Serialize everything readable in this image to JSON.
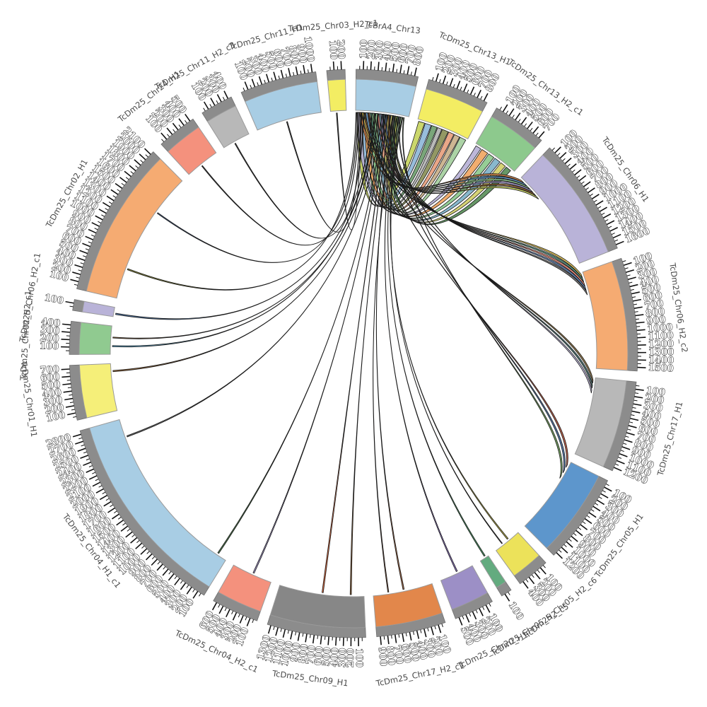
{
  "chart_data": {
    "type": "circos-synteny",
    "title": "",
    "tick_interval": 100,
    "layout": {
      "start_deg": 0.5,
      "gap_deg": 2.2,
      "band_outer_r": 402,
      "band_gray_r": 388,
      "band_inner_r": 344,
      "ribbon_r": 341,
      "tick_len": 12,
      "tick_label_r": 417,
      "name_label_r": 464,
      "tick_band_color": "#8c8c8c",
      "outline_color": "#1a1a1a"
    },
    "segments": [
      {
        "name": "TcBrA4_Chr13",
        "max_tick": 800,
        "color": "#a8cde4"
      },
      {
        "name": "TcDm25_Chr13_H1",
        "max_tick": 800,
        "color": "#f3ed63"
      },
      {
        "name": "TcDm25_Chr13_H2_c1",
        "max_tick": 700,
        "color": "#8dc98d"
      },
      {
        "name": "TcDm25_Chr06_H1",
        "max_tick": 1600,
        "color": "#b9b3d8"
      },
      {
        "name": "TcDm25_Chr06_H2_c2",
        "max_tick": 1500,
        "color": "#f5ab72"
      },
      {
        "name": "TcDm25_Chr17_H1",
        "max_tick": 1200,
        "color": "#b8b8b8"
      },
      {
        "name": "TcDm25_Chr05_H1",
        "max_tick": 1200,
        "color": "#5d96cc"
      },
      {
        "name": "TcDm25_Chr05_H2_c6",
        "max_tick": 400,
        "color": "#ece25a"
      },
      {
        "name": "TcDm25_Chr05_H2_c5",
        "max_tick": 100,
        "color": "#63ab7f"
      },
      {
        "name": "TcDm25_Chr20_H1",
        "max_tick": 500,
        "color": "#9c8fc6"
      },
      {
        "name": "TcDm25_Chr17_H2_c1",
        "max_tick": 900,
        "color": "#e2874b"
      },
      {
        "name": "TcDm25_Chr09_H1",
        "max_tick": 1300,
        "color": "#878787"
      },
      {
        "name": "TcDm25_Chr04_H2_c1",
        "max_tick": 600,
        "color": "#f4917d"
      },
      {
        "name": "TcDm25_Chr04_H1_c1",
        "max_tick": 2800,
        "color": "#a8cde4"
      },
      {
        "name": "TcDm25_Chr01_H1",
        "max_tick": 700,
        "color": "#f5ef79"
      },
      {
        "name": "TcDm25_Chr02_H2_c1",
        "max_tick": 400,
        "color": "#90ca90"
      },
      {
        "name": "TcDm25_Chr06_H2_c1",
        "max_tick": 100,
        "color": "#b9b3d8"
      },
      {
        "name": "TcDm25_Chr02_H1",
        "max_tick": 2100,
        "color": "#f5ab72"
      },
      {
        "name": "TcDm25_Chr24_H1",
        "max_tick": 500,
        "color": "#f4917d"
      },
      {
        "name": "TcDm25_Chr11_H2_c3",
        "max_tick": 400,
        "color": "#b8b8b8"
      },
      {
        "name": "TcDm25_Chr11_H1",
        "max_tick": 1000,
        "color": "#a8cde4"
      },
      {
        "name": "TcDm25_Chr03_H2_c1",
        "max_tick": 200,
        "color": "#f3ed63"
      }
    ],
    "links": {
      "source_index": 0,
      "entry_format": [
        "src_start",
        "src_end",
        "target_index",
        "tgt_start",
        "tgt_end",
        "color"
      ],
      "entries": [
        [
          20,
          120,
          1,
          20,
          120,
          "#c7d45f"
        ],
        [
          120,
          200,
          1,
          130,
          230,
          "#8fb7d8"
        ],
        [
          210,
          290,
          1,
          240,
          330,
          "#6f9e6f"
        ],
        [
          300,
          360,
          1,
          340,
          410,
          "#b3b3b3"
        ],
        [
          370,
          450,
          1,
          420,
          520,
          "#8a8f57"
        ],
        [
          460,
          540,
          1,
          530,
          620,
          "#e8a07e"
        ],
        [
          550,
          640,
          1,
          630,
          720,
          "#c9b08a"
        ],
        [
          650,
          760,
          1,
          730,
          830,
          "#a5cf9e"
        ],
        [
          30,
          110,
          2,
          20,
          110,
          "#b7b1d6"
        ],
        [
          150,
          240,
          2,
          130,
          240,
          "#f0a663"
        ],
        [
          260,
          350,
          2,
          260,
          360,
          "#8dc98d"
        ],
        [
          380,
          470,
          2,
          380,
          480,
          "#7fb2c9"
        ],
        [
          500,
          590,
          2,
          500,
          590,
          "#d3cf6a"
        ],
        [
          610,
          700,
          2,
          610,
          700,
          "#5a8f5a"
        ],
        [
          60,
          90,
          3,
          30,
          90,
          "#e08849"
        ],
        [
          160,
          190,
          3,
          100,
          160,
          "#5e97cc"
        ],
        [
          280,
          310,
          3,
          170,
          230,
          "#8dc98d"
        ],
        [
          400,
          430,
          3,
          240,
          300,
          "#9b8ec4"
        ],
        [
          520,
          550,
          3,
          310,
          370,
          "#8b5a2b"
        ],
        [
          640,
          670,
          3,
          380,
          440,
          "#c9d45c"
        ],
        [
          100,
          125,
          4,
          30,
          90,
          "#e0c04d"
        ],
        [
          230,
          255,
          4,
          100,
          160,
          "#4e8f7a"
        ],
        [
          350,
          375,
          4,
          170,
          230,
          "#f08876"
        ],
        [
          470,
          495,
          4,
          240,
          300,
          "#5b7fb5"
        ],
        [
          590,
          615,
          4,
          310,
          370,
          "#6b6b6b"
        ],
        [
          140,
          155,
          5,
          40,
          90,
          "#8b6f3e"
        ],
        [
          430,
          445,
          5,
          120,
          170,
          "#3e6b6b"
        ],
        [
          700,
          715,
          5,
          200,
          250,
          "#b7b1d6"
        ],
        [
          200,
          212,
          6,
          60,
          110,
          "#b5533c"
        ],
        [
          540,
          552,
          6,
          160,
          210,
          "#4a6fa5"
        ],
        [
          770,
          782,
          6,
          260,
          310,
          "#6a9955"
        ],
        [
          5,
          12,
          17,
          480,
          500,
          "#7a7a2e"
        ],
        [
          30,
          38,
          17,
          1500,
          1515,
          "#2e4a7a"
        ],
        [
          55,
          62,
          18,
          240,
          255,
          "#333333"
        ],
        [
          80,
          87,
          20,
          480,
          495,
          "#333333"
        ],
        [
          95,
          101,
          21,
          90,
          105,
          "#333333"
        ],
        [
          130,
          137,
          19,
          180,
          195,
          "#333333"
        ],
        [
          260,
          267,
          16,
          40,
          60,
          "#4a7ab5"
        ],
        [
          300,
          307,
          15,
          120,
          140,
          "#4a90b5"
        ],
        [
          320,
          326,
          15,
          260,
          275,
          "#8b5a2b"
        ],
        [
          360,
          367,
          14,
          620,
          640,
          "#8b5a2b"
        ],
        [
          420,
          427,
          13,
          2550,
          2570,
          "#555555"
        ],
        [
          450,
          457,
          13,
          150,
          170,
          "#3e6b3e"
        ],
        [
          480,
          487,
          12,
          300,
          320,
          "#9b8ec4"
        ],
        [
          510,
          517,
          11,
          650,
          670,
          "#e06030"
        ],
        [
          560,
          567,
          11,
          200,
          220,
          "#8b5a2b"
        ],
        [
          600,
          607,
          10,
          450,
          470,
          "#a0603a"
        ],
        [
          630,
          636,
          10,
          700,
          715,
          "#7a4a2e"
        ],
        [
          660,
          667,
          9,
          250,
          270,
          "#8a6fc4"
        ],
        [
          690,
          696,
          8,
          40,
          60,
          "#3e8f5a"
        ],
        [
          720,
          727,
          7,
          180,
          200,
          "#b5a93c"
        ],
        [
          745,
          750,
          7,
          300,
          312,
          "#555555"
        ]
      ]
    }
  }
}
